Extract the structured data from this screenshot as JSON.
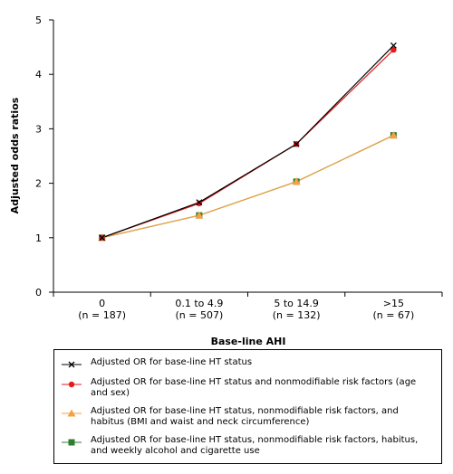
{
  "chart_data": {
    "type": "line",
    "xlabel": "Base-line AHI",
    "ylabel": "Adjusted odds ratios",
    "ylim": [
      0,
      5
    ],
    "yticks": [
      "0",
      "1",
      "2",
      "3",
      "4",
      "5"
    ],
    "categories": [
      {
        "label": "0",
        "sublabel": "(n = 187)"
      },
      {
        "label": "0.1 to 4.9",
        "sublabel": "(n = 507)"
      },
      {
        "label": "5 to 14.9",
        "sublabel": "(n = 132)"
      },
      {
        "label": ">15",
        "sublabel": "(n = 67)"
      }
    ],
    "series": [
      {
        "name": "Adjusted OR for base-line HT status",
        "values": [
          1.0,
          1.65,
          2.72,
          4.53
        ],
        "color": "#000000",
        "marker": "x"
      },
      {
        "name": "Adjusted OR for base-line HT status and nonmodifiable risk factors (age and sex)",
        "values": [
          1.0,
          1.63,
          2.72,
          4.45
        ],
        "color": "#e41a1c",
        "marker": "circle"
      },
      {
        "name": "Adjusted OR for base-line HT status, nonmodifiable risk factors, and habitus (BMI and waist and neck circumference)",
        "values": [
          1.0,
          1.41,
          2.03,
          2.88
        ],
        "color": "#f5a142",
        "marker": "triangle"
      },
      {
        "name": "Adjusted OR for base-line HT status, nonmodifiable risk factors, habitus, and weekly alcohol and cigarette use",
        "values": [
          1.0,
          1.41,
          2.03,
          2.88
        ],
        "color": "#2e7d32",
        "marker": "square"
      }
    ],
    "legend": "below",
    "grid": false
  }
}
